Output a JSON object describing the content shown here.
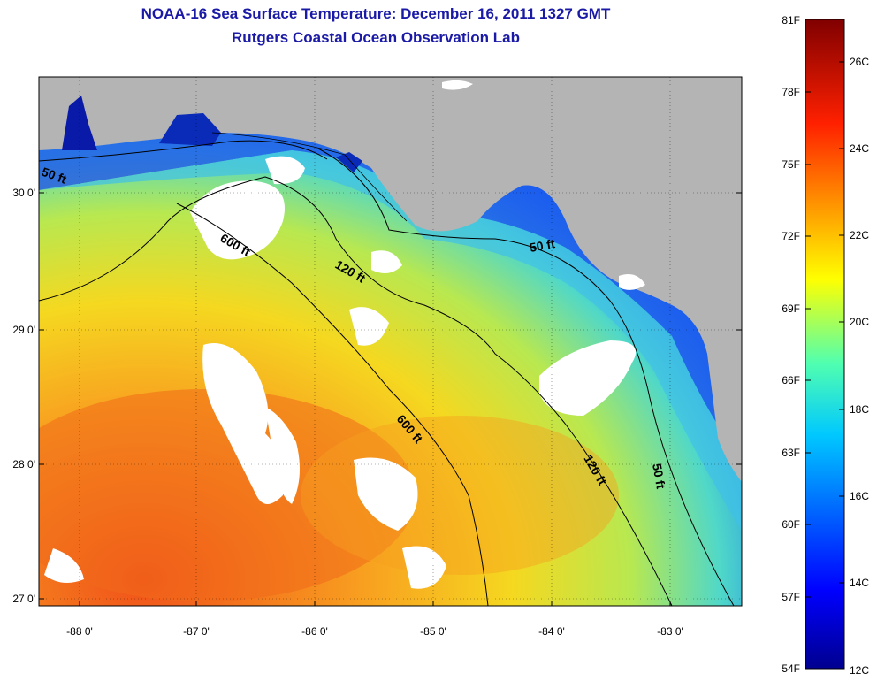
{
  "header": {
    "title": "NOAA-16 Sea Surface Temperature:  December 16, 2011 1327 GMT",
    "subtitle": "Rutgers Coastal Ocean Observation Lab"
  },
  "map": {
    "lon_labels": [
      "-88 0'",
      "-87 0'",
      "-86 0'",
      "-85 0'",
      "-84 0'",
      "-83 0'"
    ],
    "lat_labels": [
      "30 0'",
      "29 0'",
      "28 0'",
      "27 0'"
    ],
    "contour_labels": {
      "c50_west": "50 ft",
      "c600_north": "600 ft",
      "c120_north": "120 ft",
      "c50_bigbend": "50 ft",
      "c600_south": "600 ft",
      "c120_south": "120 ft",
      "c50_south": "50 ft"
    },
    "colors": {
      "land": "#b4b4b4",
      "cloud": "#ffffff",
      "contour": "#000000"
    }
  },
  "colorbar": {
    "fahrenheit_labels": [
      "81F",
      "78F",
      "75F",
      "72F",
      "69F",
      "66F",
      "63F",
      "60F",
      "57F",
      "54F"
    ],
    "celsius_labels": [
      "26C",
      "24C",
      "22C",
      "20C",
      "18C",
      "16C",
      "14C",
      "12C"
    ],
    "colormap": [
      "#00008f",
      "#0000ff",
      "#00ffff",
      "#ffff00",
      "#ff0000",
      "#800000"
    ]
  }
}
